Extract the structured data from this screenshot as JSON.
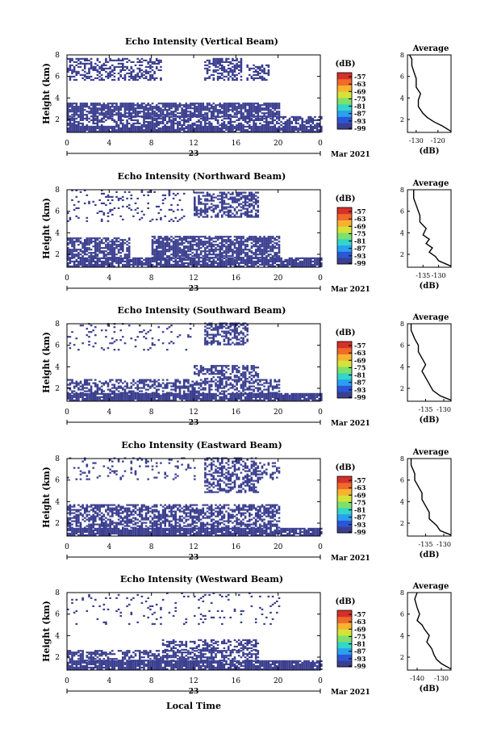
{
  "figure": {
    "xlabel_bottom": "Local Time",
    "date_day": "23",
    "date_label": "Mar 2021",
    "colorbar_unit": "(dB)",
    "colorbar_ticks": [
      "-57",
      "-63",
      "-69",
      "-75",
      "-81",
      "-87",
      "-93",
      "-99"
    ],
    "colorbar_colors": [
      "#3b3f8f",
      "#2c56d6",
      "#2aa0f0",
      "#33d6c8",
      "#7ee06a",
      "#d4e23a",
      "#f7b330",
      "#f06a2a",
      "#d6302a"
    ],
    "echo_color": "#3b3f8f"
  },
  "chart_data": [
    {
      "type": "heatmap",
      "title": "Echo Intensity (Vertical Beam)",
      "ylabel": "Height (km)",
      "xlim": [
        0,
        24
      ],
      "ylim": [
        0.8,
        8
      ],
      "xticks": [
        "0",
        "4",
        "8",
        "12",
        "16",
        "20",
        "0"
      ],
      "yticks": [
        "2",
        "4",
        "6",
        "8"
      ],
      "bands": [
        {
          "x0": 0,
          "x1": 24,
          "y0": 0.8,
          "y1": 1.4,
          "density": 0.92
        },
        {
          "x0": 0,
          "x1": 24,
          "y0": 1.4,
          "y1": 2.2,
          "density": 0.6
        },
        {
          "x0": 0,
          "x1": 20,
          "y0": 2.2,
          "y1": 3.4,
          "density": 0.8
        },
        {
          "x0": 0,
          "x1": 9,
          "y0": 5.6,
          "y1": 7.6,
          "density": 0.5
        },
        {
          "x0": 13,
          "x1": 16.5,
          "y0": 5.6,
          "y1": 7.6,
          "density": 0.55
        },
        {
          "x0": 17,
          "x1": 19,
          "y0": 5.6,
          "y1": 7.0,
          "density": 0.45
        }
      ],
      "avg_panel": {
        "title": "Average",
        "xlabel": "(dB)",
        "xlim": [
          -134,
          -114
        ],
        "xticks": [
          "-130",
          "-120"
        ],
        "ylim": [
          0.8,
          8
        ],
        "yticks": [
          "2",
          "4",
          "6",
          "8"
        ],
        "profile_x": [
          -114,
          -118,
          -122,
          -125,
          -127,
          -129,
          -129,
          -128,
          -130,
          -130,
          -131,
          -132,
          -132,
          -133
        ],
        "profile_y": [
          0.9,
          1.4,
          1.8,
          2.2,
          2.6,
          3.2,
          3.8,
          4.4,
          5.0,
          5.8,
          6.4,
          7.0,
          7.6,
          8.0
        ]
      }
    },
    {
      "type": "heatmap",
      "title": "Echo Intensity (Northward Beam)",
      "ylabel": "Height (km)",
      "xlim": [
        0,
        24
      ],
      "ylim": [
        0.8,
        8
      ],
      "xticks": [
        "0",
        "4",
        "8",
        "12",
        "16",
        "20",
        "0"
      ],
      "yticks": [
        "2",
        "4",
        "6",
        "8"
      ],
      "bands": [
        {
          "x0": 0,
          "x1": 24,
          "y0": 0.8,
          "y1": 1.6,
          "density": 0.85
        },
        {
          "x0": 0,
          "x1": 6,
          "y0": 1.6,
          "y1": 3.4,
          "density": 0.7
        },
        {
          "x0": 8,
          "x1": 20,
          "y0": 1.6,
          "y1": 3.6,
          "density": 0.75
        },
        {
          "x0": 12,
          "x1": 18,
          "y0": 5.4,
          "y1": 7.8,
          "density": 0.55
        },
        {
          "x0": 0,
          "x1": 11,
          "y0": 5.0,
          "y1": 8.0,
          "density": 0.12
        }
      ],
      "avg_panel": {
        "title": "Average",
        "xlabel": "(dB)",
        "xlim": [
          -140,
          -126
        ],
        "xticks": [
          "-135",
          "-130"
        ],
        "ylim": [
          0.8,
          8
        ],
        "yticks": [
          "2",
          "4",
          "6",
          "8"
        ],
        "profile_x": [
          -126,
          -130,
          -131,
          -133,
          -132,
          -134,
          -133,
          -135,
          -134,
          -136,
          -136,
          -137,
          -138,
          -138
        ],
        "profile_y": [
          0.9,
          1.4,
          1.8,
          2.2,
          2.6,
          3.0,
          3.4,
          3.8,
          4.4,
          5.0,
          5.6,
          6.4,
          7.2,
          8.0
        ]
      }
    },
    {
      "type": "heatmap",
      "title": "Echo Intensity (Southward Beam)",
      "ylabel": "Height (km)",
      "xlim": [
        0,
        24
      ],
      "ylim": [
        0.8,
        8
      ],
      "xticks": [
        "0",
        "4",
        "8",
        "12",
        "16",
        "20",
        "0"
      ],
      "yticks": [
        "2",
        "4",
        "6",
        "8"
      ],
      "bands": [
        {
          "x0": 0,
          "x1": 24,
          "y0": 0.8,
          "y1": 1.5,
          "density": 0.9
        },
        {
          "x0": 0,
          "x1": 20,
          "y0": 1.5,
          "y1": 2.8,
          "density": 0.55
        },
        {
          "x0": 12,
          "x1": 18,
          "y0": 2.8,
          "y1": 4.0,
          "density": 0.5
        },
        {
          "x0": 13,
          "x1": 17,
          "y0": 6.0,
          "y1": 8.0,
          "density": 0.55
        },
        {
          "x0": 0,
          "x1": 12,
          "y0": 5.5,
          "y1": 8.0,
          "density": 0.08
        }
      ],
      "avg_panel": {
        "title": "Average",
        "xlabel": "(dB)",
        "xlim": [
          -140,
          -128
        ],
        "xticks": [
          "-135",
          "-130"
        ],
        "ylim": [
          0.8,
          8
        ],
        "yticks": [
          "2",
          "4",
          "6",
          "8"
        ],
        "profile_x": [
          -128,
          -131,
          -133,
          -134,
          -135,
          -136,
          -135,
          -136,
          -137,
          -137,
          -138,
          -139,
          -139
        ],
        "profile_y": [
          0.9,
          1.3,
          1.8,
          2.4,
          3.0,
          3.6,
          4.2,
          4.8,
          5.4,
          6.0,
          6.6,
          7.4,
          8.0
        ]
      }
    },
    {
      "type": "heatmap",
      "title": "Echo Intensity (Eastward Beam)",
      "ylabel": "Height (km)",
      "xlim": [
        0,
        24
      ],
      "ylim": [
        0.8,
        8
      ],
      "xticks": [
        "0",
        "4",
        "8",
        "12",
        "16",
        "20",
        "0"
      ],
      "yticks": [
        "2",
        "4",
        "6",
        "8"
      ],
      "bands": [
        {
          "x0": 0,
          "x1": 24,
          "y0": 0.8,
          "y1": 1.5,
          "density": 0.9
        },
        {
          "x0": 0,
          "x1": 20,
          "y0": 1.5,
          "y1": 3.6,
          "density": 0.6
        },
        {
          "x0": 13,
          "x1": 18,
          "y0": 4.8,
          "y1": 8.0,
          "density": 0.5
        },
        {
          "x0": 0,
          "x1": 12,
          "y0": 6.0,
          "y1": 8.0,
          "density": 0.1
        },
        {
          "x0": 18,
          "x1": 20,
          "y0": 6.0,
          "y1": 7.6,
          "density": 0.3
        }
      ],
      "avg_panel": {
        "title": "Average",
        "xlabel": "(dB)",
        "xlim": [
          -140,
          -128
        ],
        "xticks": [
          "-135",
          "-130"
        ],
        "ylim": [
          0.8,
          8
        ],
        "yticks": [
          "2",
          "4",
          "6",
          "8"
        ],
        "profile_x": [
          -128,
          -131,
          -132,
          -134,
          -134,
          -135,
          -136,
          -136,
          -137,
          -138,
          -138,
          -139,
          -139
        ],
        "profile_y": [
          0.9,
          1.3,
          1.8,
          2.4,
          3.0,
          3.6,
          4.2,
          4.8,
          5.4,
          6.0,
          6.6,
          7.4,
          8.0
        ]
      }
    },
    {
      "type": "heatmap",
      "title": "Echo Intensity (Westward Beam)",
      "ylabel": "Height (km)",
      "xlim": [
        0,
        24
      ],
      "ylim": [
        0.8,
        8
      ],
      "xticks": [
        "0",
        "4",
        "8",
        "12",
        "16",
        "20",
        "0"
      ],
      "yticks": [
        "2",
        "4",
        "6",
        "8"
      ],
      "bands": [
        {
          "x0": 0,
          "x1": 24,
          "y0": 0.8,
          "y1": 1.6,
          "density": 0.9
        },
        {
          "x0": 0,
          "x1": 18,
          "y0": 1.6,
          "y1": 2.6,
          "density": 0.55
        },
        {
          "x0": 9,
          "x1": 18,
          "y0": 2.6,
          "y1": 3.6,
          "density": 0.45
        },
        {
          "x0": 0,
          "x1": 20,
          "y0": 5.0,
          "y1": 8.0,
          "density": 0.07
        }
      ],
      "avg_panel": {
        "title": "Average",
        "xlabel": "(dB)",
        "xlim": [
          -144,
          -126
        ],
        "xticks": [
          "-140",
          "-130"
        ],
        "ylim": [
          0.8,
          8
        ],
        "yticks": [
          "2",
          "4",
          "6",
          "8"
        ],
        "profile_x": [
          -126,
          -130,
          -132,
          -133,
          -134,
          -136,
          -135,
          -137,
          -138,
          -140,
          -139,
          -140,
          -141,
          -140
        ],
        "profile_y": [
          0.9,
          1.4,
          1.8,
          2.2,
          2.8,
          3.4,
          4.0,
          4.6,
          5.0,
          5.4,
          6.0,
          6.6,
          7.4,
          8.0
        ]
      }
    }
  ]
}
